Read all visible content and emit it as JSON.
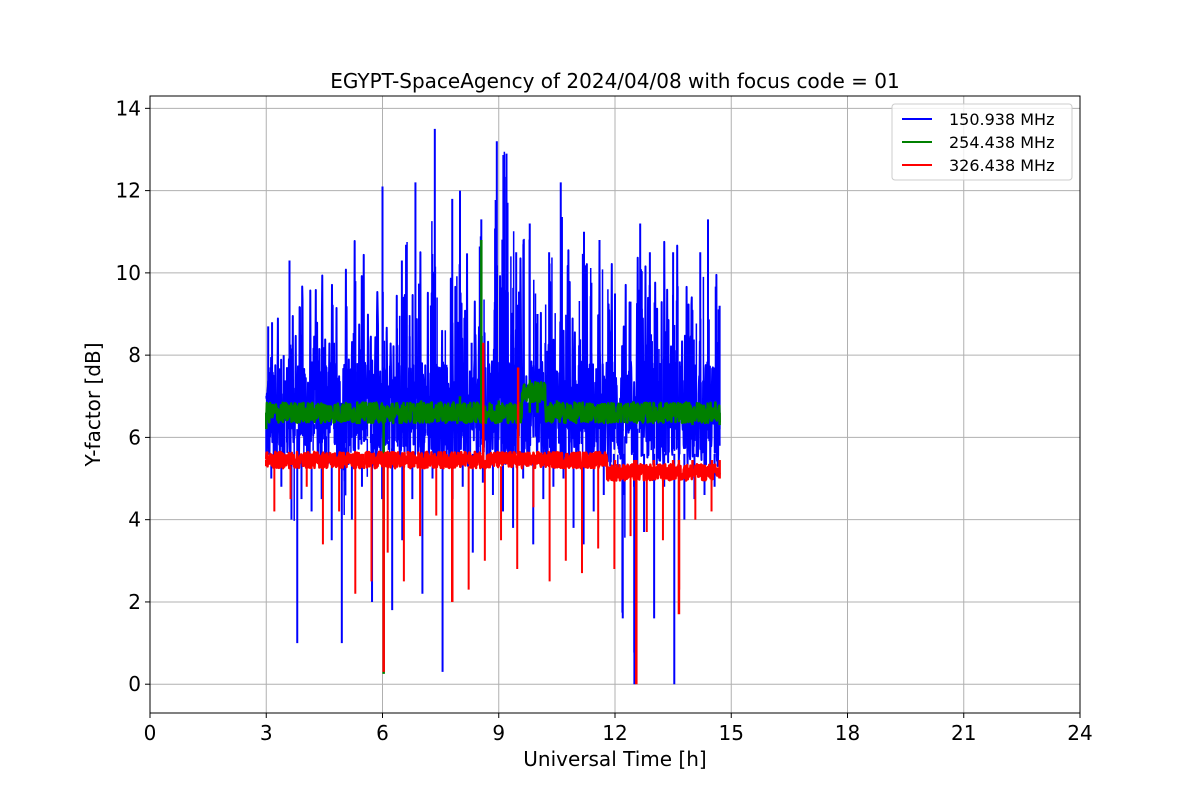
{
  "chart_data": {
    "type": "line",
    "title": "EGYPT-SpaceAgency of 2024/04/08 with focus code = 01",
    "xlabel": "Universal Time [h]",
    "ylabel": "Y-factor [dB]",
    "xlim": [
      0,
      24
    ],
    "ylim": [
      -0.7,
      14.3
    ],
    "xticks": [
      0,
      3,
      6,
      9,
      12,
      15,
      18,
      21,
      24
    ],
    "yticks": [
      0,
      2,
      4,
      6,
      8,
      10,
      12,
      14
    ],
    "grid": true,
    "legend_position": "top-right",
    "series": [
      {
        "name": "150.938 MHz",
        "color": "#0000ff",
        "x": [
          3.0,
          3.05,
          3.1,
          3.15,
          3.3,
          3.45,
          3.6,
          3.65,
          3.8,
          3.9,
          4.1,
          4.3,
          4.5,
          4.75,
          5.0,
          5.3,
          5.6,
          5.9,
          6.0,
          6.2,
          6.5,
          6.85,
          7.1,
          7.35,
          7.5,
          7.8,
          8.0,
          8.3,
          8.55,
          8.75,
          8.95,
          9.2,
          9.45,
          9.8,
          10.0,
          10.3,
          10.6,
          10.9,
          11.2,
          11.6,
          12.0,
          12.2,
          12.4,
          12.5,
          12.65,
          12.9,
          13.2,
          13.5,
          13.85,
          14.2,
          14.4,
          14.7
        ],
        "y": [
          5.5,
          8.7,
          6.6,
          8.8,
          6.2,
          8.0,
          10.3,
          7.0,
          1.0,
          8.5,
          6.4,
          8.8,
          6.6,
          8.3,
          5.2,
          9.8,
          6.6,
          6.8,
          12.1,
          6.2,
          10.3,
          12.2,
          6.1,
          13.5,
          7.4,
          11.8,
          12.0,
          8.3,
          11.3,
          7.1,
          13.2,
          12.9,
          10.5,
          11.2,
          9.0,
          10.5,
          12.2,
          7.0,
          11.0,
          10.8,
          9.5,
          1.6,
          9.3,
          0.0,
          11.2,
          10.5,
          8.0,
          10.5,
          8.4,
          10.5,
          11.3,
          9.2
        ],
        "min_envelope": [
          5.0,
          4.8,
          4.0,
          4.5,
          4.2,
          4.5,
          3.5,
          1.0,
          4.0,
          4.8,
          2.0,
          4.5,
          1.8,
          3.5,
          4.5,
          2.2,
          5.0,
          0.3,
          4.5,
          4.8,
          3.2,
          4.9,
          4.6,
          4.2,
          3.8,
          5.0,
          3.4,
          4.5,
          4.8,
          5.0,
          3.8,
          3.4,
          4.2,
          4.6,
          5.0,
          4.6,
          4.8,
          3.7,
          1.6,
          4.8,
          0.0,
          4.0,
          4.5,
          4.6,
          4.8
        ]
      },
      {
        "name": "254.438 MHz",
        "color": "#008000",
        "x": [
          3.0,
          3.3,
          3.6,
          4.0,
          4.5,
          5.0,
          5.5,
          6.0,
          6.03,
          6.5,
          7.0,
          7.5,
          8.0,
          8.5,
          8.55,
          8.6,
          9.0,
          9.5,
          9.8,
          10.0,
          10.5,
          11.0,
          11.5,
          12.0,
          12.5,
          13.0,
          13.5,
          14.0,
          14.5,
          14.7
        ],
        "y": [
          6.2,
          6.6,
          6.5,
          6.4,
          6.7,
          6.8,
          6.6,
          6.5,
          0.25,
          6.8,
          6.9,
          6.7,
          7.0,
          6.8,
          10.8,
          6.9,
          6.9,
          6.8,
          7.4,
          7.2,
          6.9,
          6.8,
          6.7,
          6.6,
          6.5,
          6.4,
          6.5,
          6.3,
          6.4,
          6.3
        ]
      },
      {
        "name": "326.438 MHz",
        "color": "#ff0000",
        "x": [
          3.0,
          3.3,
          3.6,
          4.0,
          4.5,
          5.0,
          5.5,
          6.0,
          6.03,
          6.5,
          7.0,
          7.5,
          7.8,
          8.0,
          8.5,
          8.6,
          9.0,
          9.45,
          9.5,
          10.0,
          10.5,
          11.0,
          11.5,
          12.0,
          12.5,
          12.55,
          13.0,
          13.5,
          13.65,
          14.0,
          14.5,
          14.7
        ],
        "y": [
          5.3,
          5.5,
          5.6,
          5.5,
          5.6,
          5.5,
          5.6,
          5.5,
          0.3,
          5.6,
          5.5,
          5.6,
          2.0,
          5.5,
          5.5,
          8.3,
          5.5,
          5.5,
          7.7,
          5.5,
          5.4,
          5.4,
          5.3,
          5.3,
          5.2,
          0.0,
          5.1,
          5.1,
          1.7,
          5.1,
          5.1,
          5.0
        ],
        "min_envelope": [
          4.2,
          4.5,
          4.8,
          3.4,
          4.2,
          2.2,
          2.5,
          3.2,
          2.5,
          3.6,
          4.1,
          2.2,
          2.3,
          3.0,
          3.5,
          2.8,
          4.3,
          2.5,
          3.0,
          2.7,
          3.3,
          2.8,
          3.6,
          3.7,
          3.5,
          2.3,
          4.0,
          4.2
        ]
      }
    ]
  }
}
